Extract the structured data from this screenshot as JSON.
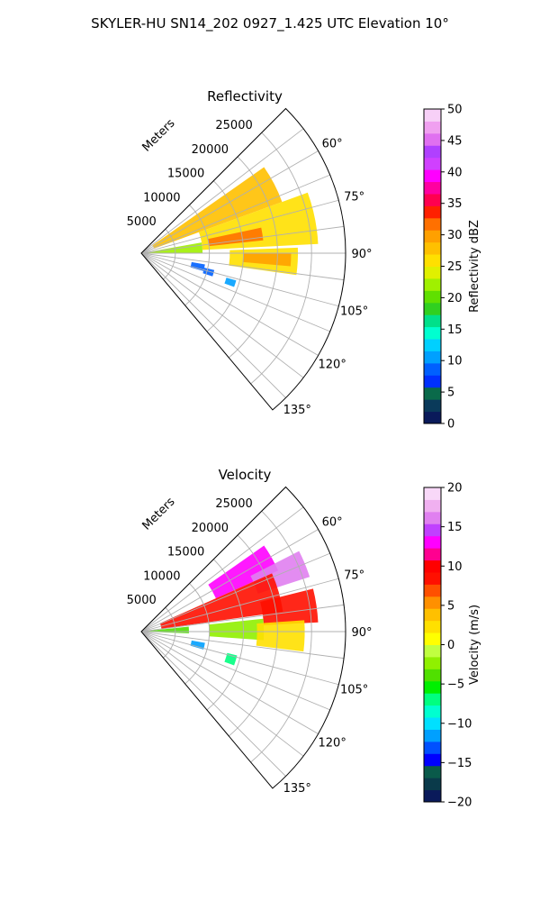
{
  "suptitle": "SKYLER-HU  SN14_202  0927_1.425 UTC Elevation 10°",
  "chart_data": [
    {
      "type": "heatmap",
      "projection": "polar-sector",
      "title": "Reflectivity",
      "range_label": "Meters",
      "range_ticks": [
        5000,
        10000,
        15000,
        20000,
        25000
      ],
      "range_tick_labels": [
        "5000",
        "10000",
        "15000",
        "20000",
        "25000"
      ],
      "range_max": 30000,
      "azimuth_ticks": [
        60,
        75,
        90,
        105,
        120,
        135
      ],
      "azimuth_tick_labels": [
        "60°",
        "75°",
        "90°",
        "105°",
        "120°",
        "135°"
      ],
      "azimuth_range": [
        45,
        140
      ],
      "grid": true,
      "colorbar": {
        "label": "Reflectivity dBZ",
        "min": 0,
        "max": 50,
        "ticks": [
          0,
          5,
          10,
          15,
          20,
          25,
          30,
          35,
          40,
          45,
          50
        ],
        "tick_labels": [
          "0",
          "5",
          "10",
          "15",
          "20",
          "25",
          "30",
          "35",
          "40",
          "45",
          "50"
        ],
        "colors": [
          "#0a1a5a",
          "#0a3a5a",
          "#0a6a4a",
          "#0030ff",
          "#0060ff",
          "#00a0ff",
          "#00d0ff",
          "#00ffd0",
          "#00e08a",
          "#30d020",
          "#60e000",
          "#a0f000",
          "#e0f000",
          "#ffe000",
          "#ffc000",
          "#ffa000",
          "#ff7000",
          "#ff2000",
          "#ff0050",
          "#ff00a0",
          "#ff00ff",
          "#d040ff",
          "#b040ff",
          "#e070f0",
          "#f0a0f0",
          "#f7d0f7"
        ]
      },
      "echo_regions": [
        {
          "az": [
            55,
            70
          ],
          "range": [
            2000,
            22000
          ],
          "value": 27
        },
        {
          "az": [
            70,
            87
          ],
          "range": [
            9000,
            26000
          ],
          "value": 26
        },
        {
          "az": [
            78,
            84
          ],
          "range": [
            10000,
            18000
          ],
          "value": 31
        },
        {
          "az": [
            88,
            98
          ],
          "range": [
            13000,
            23000
          ],
          "value": 25
        },
        {
          "az": [
            90,
            95
          ],
          "range": [
            15000,
            22000
          ],
          "value": 29
        },
        {
          "az": [
            80,
            90
          ],
          "range": [
            500,
            9000
          ],
          "value": 22
        },
        {
          "az": [
            100,
            106
          ],
          "range": [
            7500,
            9500
          ],
          "value": 9
        },
        {
          "az": [
            103,
            108
          ],
          "range": [
            9500,
            11000
          ],
          "value": 8
        },
        {
          "az": [
            106,
            110
          ],
          "range": [
            13000,
            14500
          ],
          "value": 10
        }
      ]
    },
    {
      "type": "heatmap",
      "projection": "polar-sector",
      "title": "Velocity",
      "range_label": "Meters",
      "range_ticks": [
        5000,
        10000,
        15000,
        20000,
        25000
      ],
      "range_tick_labels": [
        "5000",
        "10000",
        "15000",
        "20000",
        "25000"
      ],
      "range_max": 30000,
      "azimuth_ticks": [
        60,
        75,
        90,
        105,
        120,
        135
      ],
      "azimuth_tick_labels": [
        "60°",
        "75°",
        "90°",
        "105°",
        "120°",
        "135°"
      ],
      "azimuth_range": [
        45,
        140
      ],
      "grid": true,
      "colorbar": {
        "label": "Velocity (m/s)",
        "min": -20,
        "max": 20,
        "ticks": [
          -20,
          -15,
          -10,
          -5,
          0,
          5,
          10,
          15,
          20
        ],
        "tick_labels": [
          "−20",
          "−15",
          "−10",
          "−5",
          "0",
          "5",
          "10",
          "15",
          "20"
        ],
        "colors": [
          "#0a1a5a",
          "#0a3a4a",
          "#0a5a4a",
          "#0000ff",
          "#0050ff",
          "#00a0ff",
          "#00e0ff",
          "#00ffd0",
          "#00ff80",
          "#00f000",
          "#50e000",
          "#90f000",
          "#c0ff40",
          "#ffff00",
          "#ffe000",
          "#ffc000",
          "#ff9000",
          "#ff5000",
          "#ff1000",
          "#ff0000",
          "#ff0090",
          "#ff00ff",
          "#c040ff",
          "#e080f0",
          "#f0b0f0",
          "#f8d8f8"
        ]
      },
      "echo_regions": [
        {
          "az": [
            55,
            66
          ],
          "range": [
            12000,
            22000
          ],
          "value": 13
        },
        {
          "az": [
            63,
            72
          ],
          "range": [
            18000,
            26000
          ],
          "value": 16
        },
        {
          "az": [
            66,
            82
          ],
          "range": [
            3000,
            21000
          ],
          "value": 9
        },
        {
          "az": [
            76,
            87
          ],
          "range": [
            18000,
            26000
          ],
          "value": 8
        },
        {
          "az": [
            84,
            94
          ],
          "range": [
            10000,
            18000
          ],
          "value": -2
        },
        {
          "az": [
            86,
            97
          ],
          "range": [
            17000,
            24000
          ],
          "value": 3
        },
        {
          "az": [
            84,
            92
          ],
          "range": [
            500,
            7000
          ],
          "value": -4
        },
        {
          "az": [
            100,
            106
          ],
          "range": [
            7500,
            9500
          ],
          "value": -11
        },
        {
          "az": [
            104,
            110
          ],
          "range": [
            13000,
            14500
          ],
          "value": -7
        }
      ]
    }
  ]
}
